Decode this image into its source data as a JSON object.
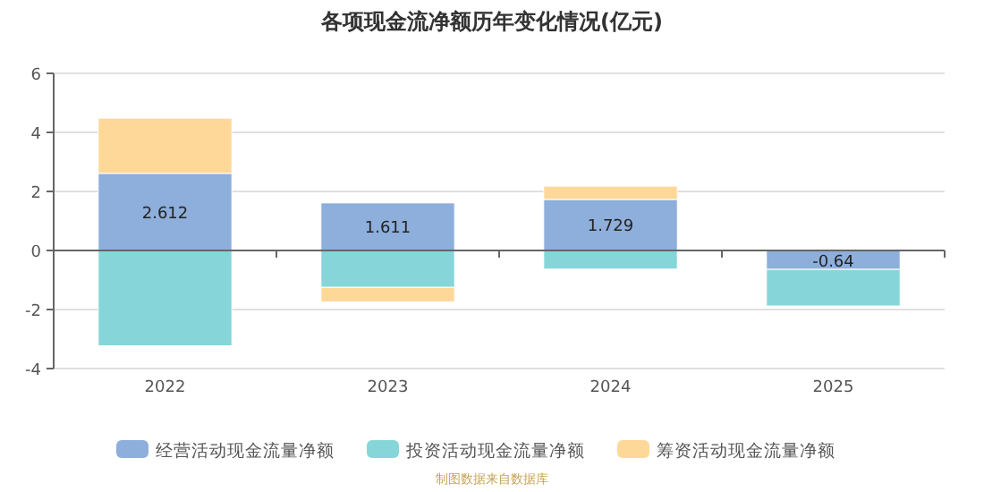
{
  "chart_data": {
    "type": "bar",
    "title": "各项现金流净额历年变化情况(亿元)",
    "stacked": true,
    "categories": [
      "2022",
      "2023",
      "2024",
      "2025"
    ],
    "series": [
      {
        "name": "经营活动现金流量净额",
        "color": "#8eaedb",
        "values": [
          2.612,
          1.611,
          1.729,
          -0.64
        ],
        "value_labels": [
          "2.612",
          "1.611",
          "1.729",
          "-0.64"
        ]
      },
      {
        "name": "投资活动现金流量净额",
        "color": "#86d6d9",
        "values": [
          -3.23,
          -1.25,
          -0.63,
          -1.24
        ]
      },
      {
        "name": "筹资活动现金流量净额",
        "color": "#fed898",
        "values": [
          1.87,
          -0.49,
          0.45,
          null
        ]
      }
    ],
    "ylim": [
      -4,
      6
    ],
    "yticks": [
      -4,
      -2,
      0,
      2,
      4,
      6
    ],
    "grid": "y",
    "legend": "bottom",
    "annotations": [
      "制图数据来自数据库"
    ]
  }
}
